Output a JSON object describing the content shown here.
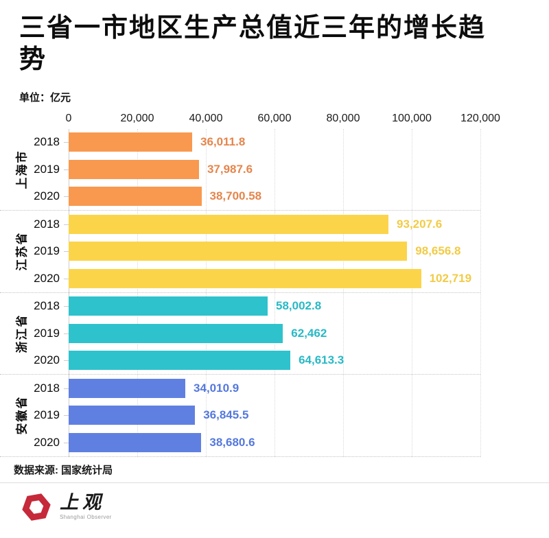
{
  "header": {
    "title": "三省一市地区生产总值近三年的增长趋势",
    "unit": "单位：亿元"
  },
  "chart_data": {
    "type": "bar",
    "orientation": "horizontal",
    "title": "三省一市地区生产总值近三年的增长趋势",
    "unit_label": "单位：亿元",
    "xlim": [
      0,
      120000
    ],
    "x_ticks": [
      "0",
      "20,000",
      "40,000",
      "60,000",
      "80,000",
      "100,000",
      "120,000"
    ],
    "grid": "dotted-vertical",
    "groups": [
      {
        "name": "上海市",
        "bar_color": "#F8994F",
        "label_color": "#E5854C",
        "rows": [
          {
            "year": "2018",
            "value": 36011.8,
            "label": "36,011.8"
          },
          {
            "year": "2019",
            "value": 37987.6,
            "label": "37,987.6"
          },
          {
            "year": "2020",
            "value": 38700.58,
            "label": "38,700.58"
          }
        ]
      },
      {
        "name": "江苏省",
        "bar_color": "#FBD44A",
        "label_color": "#F2CB45",
        "rows": [
          {
            "year": "2018",
            "value": 93207.6,
            "label": "93,207.6"
          },
          {
            "year": "2019",
            "value": 98656.8,
            "label": "98,656.8"
          },
          {
            "year": "2020",
            "value": 102719,
            "label": "102,719"
          }
        ]
      },
      {
        "name": "浙江省",
        "bar_color": "#2EC2CD",
        "label_color": "#28B9C6",
        "rows": [
          {
            "year": "2018",
            "value": 58002.8,
            "label": "58,002.8"
          },
          {
            "year": "2019",
            "value": 62462,
            "label": "62,462"
          },
          {
            "year": "2020",
            "value": 64613.3,
            "label": "64,613.3"
          }
        ]
      },
      {
        "name": "安徽省",
        "bar_color": "#6080E1",
        "label_color": "#5478DC",
        "rows": [
          {
            "year": "2018",
            "value": 34010.9,
            "label": "34,010.9"
          },
          {
            "year": "2019",
            "value": 36845.5,
            "label": "36,845.5"
          },
          {
            "year": "2020",
            "value": 38680.6,
            "label": "38,680.6"
          }
        ]
      }
    ]
  },
  "footer": {
    "source": "数据来源: 国家统计局",
    "logo_cn": "上观",
    "logo_en": "Shanghai Observer"
  },
  "colors": {
    "brand_red": "#C5293A",
    "axis_line": "#cccccc",
    "gridline": "#d9d9d9",
    "separator": "#c2c2c2"
  }
}
